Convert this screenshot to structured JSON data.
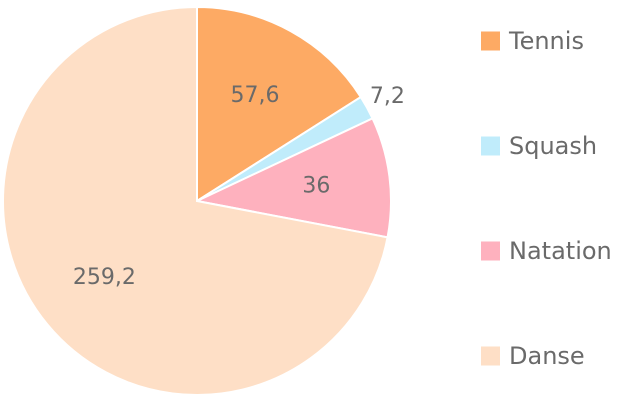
{
  "chart_data": {
    "type": "pie",
    "categories": [
      "Tennis",
      "Squash",
      "Natation",
      "Danse"
    ],
    "values": [
      57.6,
      7.2,
      36,
      259.2
    ],
    "value_labels": [
      "57,6",
      "7,2",
      "36",
      "259,2"
    ],
    "colors": [
      "#fdaa64",
      "#c0ecfb",
      "#feb1be",
      "#fedfc6"
    ],
    "start_angle_deg": 0,
    "direction": "clockwise",
    "legend": {
      "placement": "right",
      "entries": [
        "Tennis",
        "Squash",
        "Natation",
        "Danse"
      ]
    }
  }
}
